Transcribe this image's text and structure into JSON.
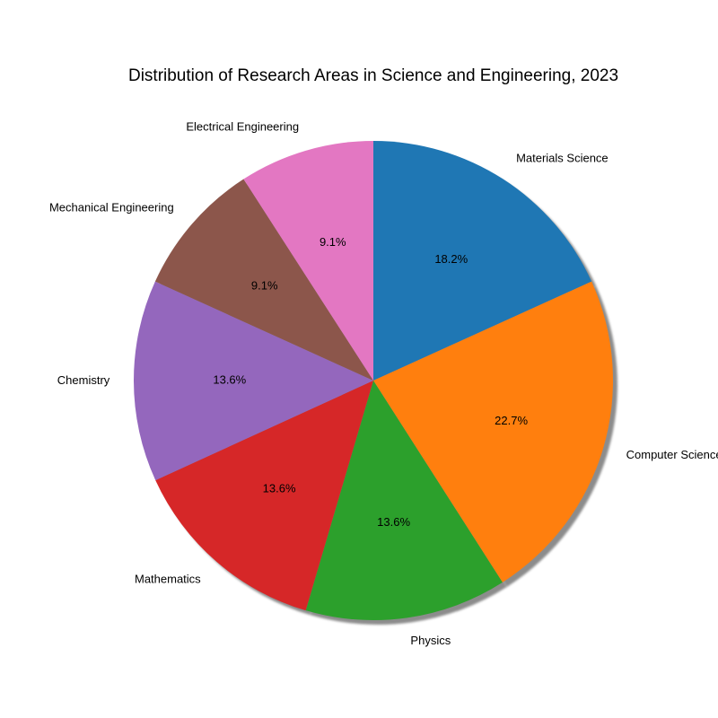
{
  "chart_data": {
    "type": "pie",
    "title": "Distribution of Research Areas in Science and Engineering, 2023",
    "start_angle_deg": 90,
    "direction": "clockwise",
    "shadow": true,
    "slices": [
      {
        "label": "Materials Science",
        "value": 18.2,
        "pct_label": "18.2%",
        "color": "#1f77b4"
      },
      {
        "label": "Computer Science",
        "value": 22.7,
        "pct_label": "22.7%",
        "color": "#ff7f0e"
      },
      {
        "label": "Physics",
        "value": 13.6,
        "pct_label": "13.6%",
        "color": "#2ca02c"
      },
      {
        "label": "Mathematics",
        "value": 13.6,
        "pct_label": "13.6%",
        "color": "#d62728"
      },
      {
        "label": "Chemistry",
        "value": 13.6,
        "pct_label": "13.6%",
        "color": "#9467bd"
      },
      {
        "label": "Mechanical Engineering",
        "value": 9.1,
        "pct_label": "9.1%",
        "color": "#8c564b"
      },
      {
        "label": "Electrical Engineering",
        "value": 9.1,
        "pct_label": "9.1%",
        "color": "#e377c2"
      }
    ]
  }
}
